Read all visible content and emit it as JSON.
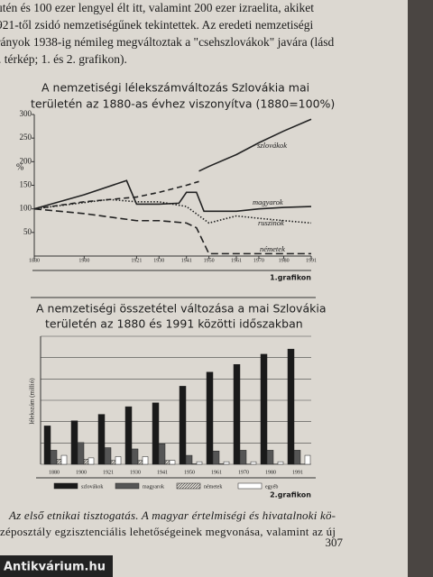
{
  "text_top": [
    "utén és 100 ezer lengyel élt itt, valamint 200 ezer izraelita, akiket",
    "921-től zsidó nemzetiségűnek tekintettek. Az eredeti nemzetiségi",
    "rányok 1938-ig némileg megváltoztak a \"csehszlovákok\" javára (lásd",
    ". térkép; 1. és 2. grafikon)."
  ],
  "chart1": {
    "type": "line",
    "title": [
      "A nemzetiségi lélekszámváltozás Szlovákia mai",
      "területén az 1880-as évhez viszonyítva (1880=100%)"
    ],
    "ylabel": "%",
    "caption": "1.grafikon",
    "xlim": [
      1880,
      1991
    ],
    "xticks": [
      1880,
      1900,
      1921,
      1930,
      1941,
      1950,
      1961,
      1970,
      1980,
      1991
    ],
    "ylim": [
      0,
      300
    ],
    "yticks": [
      50,
      100,
      150,
      200,
      250,
      300
    ],
    "series": [
      {
        "name": "szlovákok",
        "color": "#222",
        "dash": "6 4",
        "x": [
          1880,
          1900,
          1921,
          1930,
          1941,
          1946
        ],
        "values": [
          100,
          115,
          125,
          135,
          150,
          158
        ]
      },
      {
        "name": "szlovákok",
        "color": "#222",
        "dash": "",
        "x": [
          1946,
          1950,
          1961,
          1970,
          1980,
          1991
        ],
        "values": [
          180,
          190,
          215,
          240,
          265,
          290
        ]
      },
      {
        "name": "magyarok",
        "color": "#222",
        "dash": "",
        "x": [
          1880,
          1900,
          1917,
          1921,
          1930,
          1938,
          1941,
          1945,
          1948,
          1950,
          1961,
          1970,
          1980,
          1991
        ],
        "values": [
          100,
          130,
          160,
          110,
          110,
          112,
          135,
          135,
          95,
          95,
          95,
          100,
          103,
          105
        ]
      },
      {
        "name": "ruszinok",
        "color": "#222",
        "dash": "1.5 2",
        "x": [
          1880,
          1910,
          1921,
          1930,
          1941,
          1950,
          1961,
          1970,
          1980,
          1991
        ],
        "values": [
          100,
          120,
          115,
          115,
          105,
          70,
          85,
          80,
          75,
          70
        ]
      },
      {
        "name": "németek",
        "color": "#222",
        "dash": "8 4",
        "x": [
          1880,
          1900,
          1921,
          1930,
          1941,
          1945,
          1950,
          1961,
          1970,
          1980,
          1991
        ],
        "values": [
          100,
          90,
          75,
          75,
          70,
          60,
          5,
          5,
          5,
          5,
          5
        ]
      }
    ]
  },
  "chart2": {
    "type": "bar",
    "title": [
      "A nemzetiségi összetétel változása a mai Szlovákia",
      "területén az 1880 és 1991 közötti időszakban"
    ],
    "ylabel": "lélekszám (millió)",
    "caption": "2.grafikon",
    "categories": [
      "1880",
      "1900",
      "1921",
      "1930",
      "1941",
      "1950",
      "1961",
      "1970",
      "1980",
      "1991"
    ],
    "ylim": [
      0,
      5
    ],
    "series": [
      {
        "name": "szlovákok",
        "color": "#1a1a1a",
        "values": [
          1.5,
          1.7,
          1.95,
          2.25,
          2.4,
          3.05,
          3.6,
          3.9,
          4.3,
          4.5
        ]
      },
      {
        "name": "magyarok",
        "color": "#555",
        "values": [
          0.55,
          0.85,
          0.65,
          0.6,
          0.8,
          0.35,
          0.52,
          0.55,
          0.55,
          0.55
        ]
      },
      {
        "name": "németek",
        "color": "#bbb",
        "values": [
          0.2,
          0.2,
          0.15,
          0.15,
          0.15,
          0.02,
          0.02,
          0.01,
          0.01,
          0.01
        ]
      },
      {
        "name": "egyéb",
        "color": "#fff",
        "values": [
          0.35,
          0.25,
          0.3,
          0.3,
          0.15,
          0.1,
          0.1,
          0.1,
          0.1,
          0.35
        ]
      }
    ]
  },
  "text_bottom": [
    "Az első etnikai tisztogatás. A magyar értelmiségi és hivatalnoki kö-",
    "zéposztály egzisztenciális lehetőségeinek megvonása, valamint az új"
  ],
  "page_number": "307",
  "watermark": "Antikvárium.hu"
}
